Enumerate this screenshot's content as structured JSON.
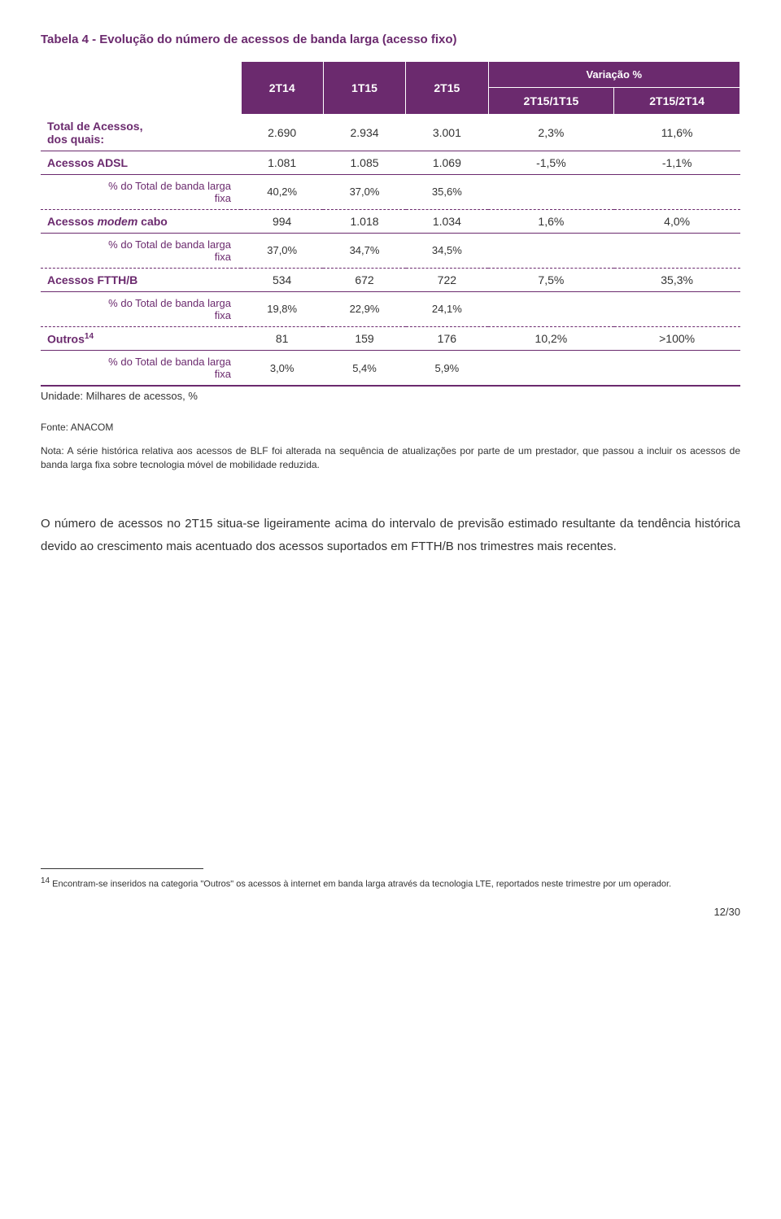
{
  "title": "Tabela 4 - Evolução do número de acessos de banda larga (acesso fixo)",
  "colors": {
    "accent": "#6b2a6e",
    "text": "#333333",
    "white": "#ffffff"
  },
  "table": {
    "headers": {
      "c1": "2T14",
      "c2": "1T15",
      "c3": "2T15",
      "var_title": "Variação %",
      "c4": "2T15/1T15",
      "c5": "2T15/2T14"
    },
    "rows": [
      {
        "type": "main",
        "label_html": "Total de Acessos,<br>dos quais:",
        "c1": "2.690",
        "c2": "2.934",
        "c3": "3.001",
        "c4": "2,3%",
        "c5": "11,6%"
      },
      {
        "type": "main",
        "label_html": "Acessos ADSL",
        "c1": "1.081",
        "c2": "1.085",
        "c3": "1.069",
        "c4": "-1,5%",
        "c5": "-1,1%"
      },
      {
        "type": "sub",
        "label_html": "% do Total de banda larga<br>fixa",
        "c1": "40,2%",
        "c2": "37,0%",
        "c3": "35,6%",
        "c4": "",
        "c5": ""
      },
      {
        "type": "main",
        "label_html": "Acessos <em>modem</em> cabo",
        "c1": "994",
        "c2": "1.018",
        "c3": "1.034",
        "c4": "1,6%",
        "c5": "4,0%"
      },
      {
        "type": "sub",
        "label_html": "% do Total de banda larga<br>fixa",
        "c1": "37,0%",
        "c2": "34,7%",
        "c3": "34,5%",
        "c4": "",
        "c5": ""
      },
      {
        "type": "main",
        "label_html": "Acessos FTTH/B",
        "c1": "534",
        "c2": "672",
        "c3": "722",
        "c4": "7,5%",
        "c5": "35,3%"
      },
      {
        "type": "sub",
        "label_html": "% do Total de banda larga<br>fixa",
        "c1": "19,8%",
        "c2": "22,9%",
        "c3": "24,1%",
        "c4": "",
        "c5": ""
      },
      {
        "type": "main",
        "label_html": "Outros<sup>14</sup>",
        "c1": "81",
        "c2": "159",
        "c3": "176",
        "c4": "10,2%",
        "c5": ">100%"
      },
      {
        "type": "sub-last",
        "label_html": "% do Total de banda larga<br>fixa",
        "c1": "3,0%",
        "c2": "5,4%",
        "c3": "5,9%",
        "c4": "",
        "c5": ""
      }
    ]
  },
  "unit_line": "Unidade: Milhares de acessos, %",
  "fonte": "Fonte: ANACOM",
  "nota": "Nota: A série histórica relativa aos acessos de BLF foi alterada na sequência de atualizações por parte de um prestador, que passou a incluir os acessos de banda larga fixa sobre tecnologia móvel de mobilidade reduzida.",
  "body_para": "O número de acessos no 2T15 situa-se ligeiramente acima do intervalo de previsão estimado resultante da tendência histórica devido ao crescimento mais acentuado dos acessos suportados em FTTH/B nos trimestres mais recentes.",
  "footnote_html": "<sup>14</sup> Encontram-se inseridos na categoria \"Outros\" os acessos à internet em banda larga através da tecnologia LTE, reportados neste trimestre por um operador.",
  "page_num": "12/30"
}
